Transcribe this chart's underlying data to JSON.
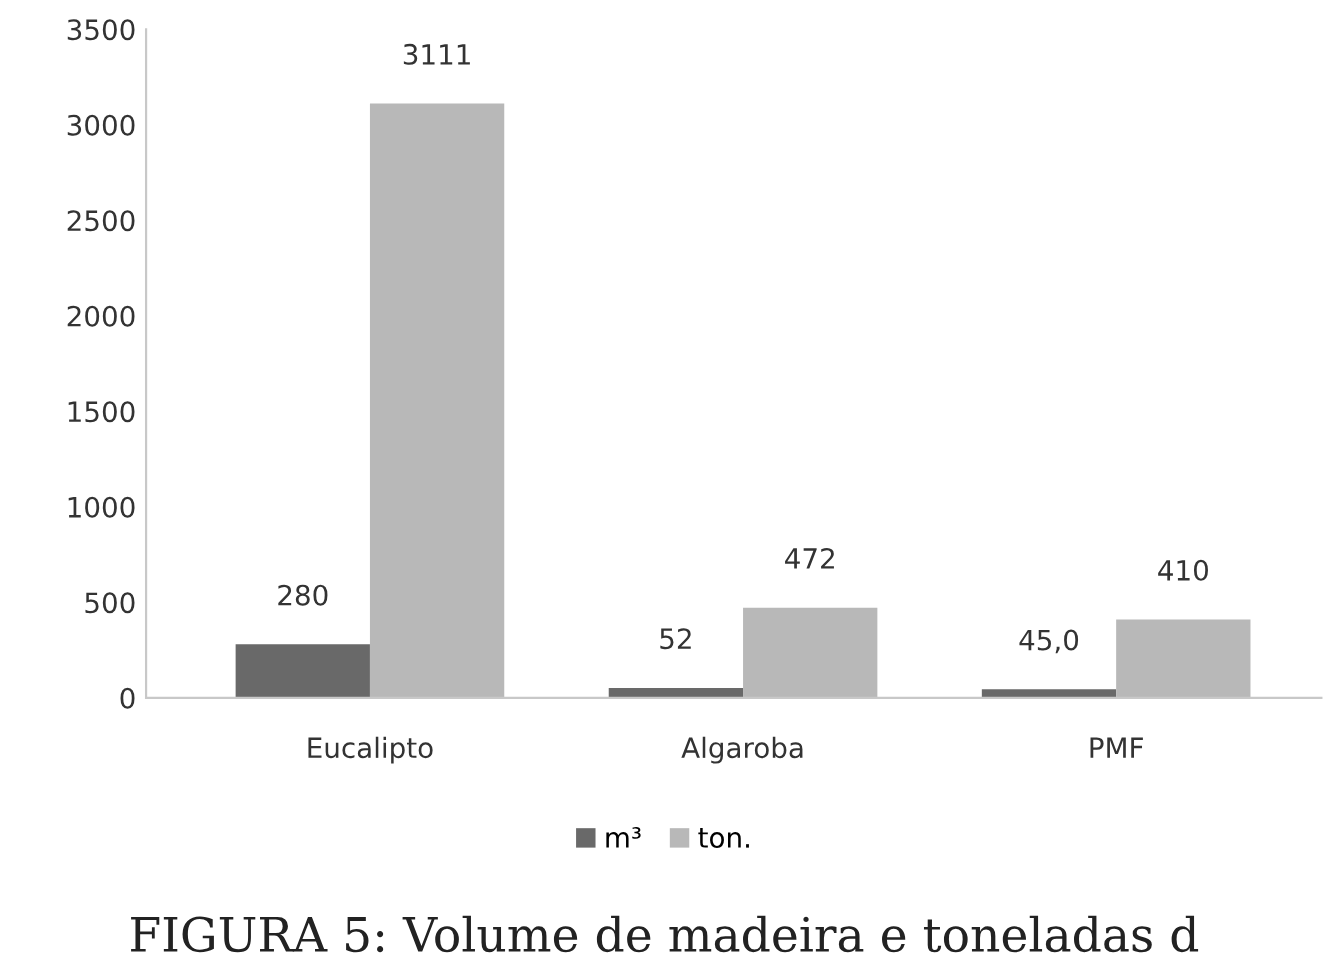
{
  "chart_data": {
    "type": "bar",
    "categories": [
      "Eucalipto",
      "Algaroba",
      "PMF"
    ],
    "series": [
      {
        "name": "m³",
        "color": "#696969",
        "values": [
          280,
          52,
          45.0
        ],
        "value_labels": [
          "280",
          "52",
          "45,0"
        ]
      },
      {
        "name": "ton.",
        "color": "#b8b8b8",
        "values": [
          3111,
          472,
          410
        ],
        "value_labels": [
          "3111",
          "472",
          "410"
        ]
      }
    ],
    "ylim": [
      0,
      3500
    ],
    "yticks": [
      0,
      500,
      1000,
      1500,
      2000,
      2500,
      3000,
      3500
    ],
    "grid": false,
    "legend": "bottom",
    "annotations": [
      "FIGURA 5: Volume de madeira e toneladas d"
    ]
  }
}
